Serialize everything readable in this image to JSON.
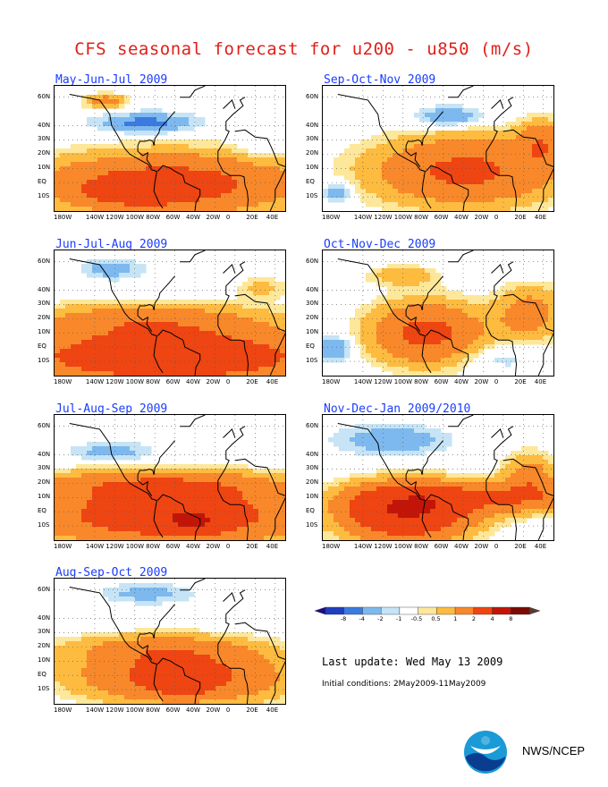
{
  "title": "CFS seasonal forecast for u200 - u850 (m/s)",
  "lat_labels": [
    "60N",
    "40N",
    "30N",
    "20N",
    "10N",
    "EQ",
    "10S"
  ],
  "lon_labels": [
    "180W",
    "140W",
    "120W",
    "100W",
    "80W",
    "60W",
    "40W",
    "20W",
    "0",
    "20E",
    "40E"
  ],
  "panels": [
    {
      "title": "May-Jun-Jul 2009",
      "pattern": 0
    },
    {
      "title": "Sep-Oct-Nov 2009",
      "pattern": 1
    },
    {
      "title": "Jun-Jul-Aug 2009",
      "pattern": 2
    },
    {
      "title": "Oct-Nov-Dec 2009",
      "pattern": 3
    },
    {
      "title": "Jul-Aug-Sep 2009",
      "pattern": 4
    },
    {
      "title": "Nov-Dec-Jan 2009/2010",
      "pattern": 5
    },
    {
      "title": "Aug-Sep-Oct 2009",
      "pattern": 6
    }
  ],
  "colorbar": {
    "colors": [
      "#1f0a8c",
      "#1f3fbf",
      "#3c7ae0",
      "#7db9ef",
      "#c6e4f5",
      "#ffffff",
      "#fde79a",
      "#fdbb40",
      "#f8882a",
      "#ee4512",
      "#c21507",
      "#7a0a05",
      "#5a3a30"
    ],
    "labels": [
      "-8",
      "-4",
      "-2",
      "-1",
      "-0.5",
      "0.5",
      "1",
      "2",
      "4",
      "8"
    ]
  },
  "last_update": "Last update: Wed May 13 2009",
  "initial_conditions": "Initial conditions: 2May2009-11May2009",
  "agency": "NWS/NCEP"
}
